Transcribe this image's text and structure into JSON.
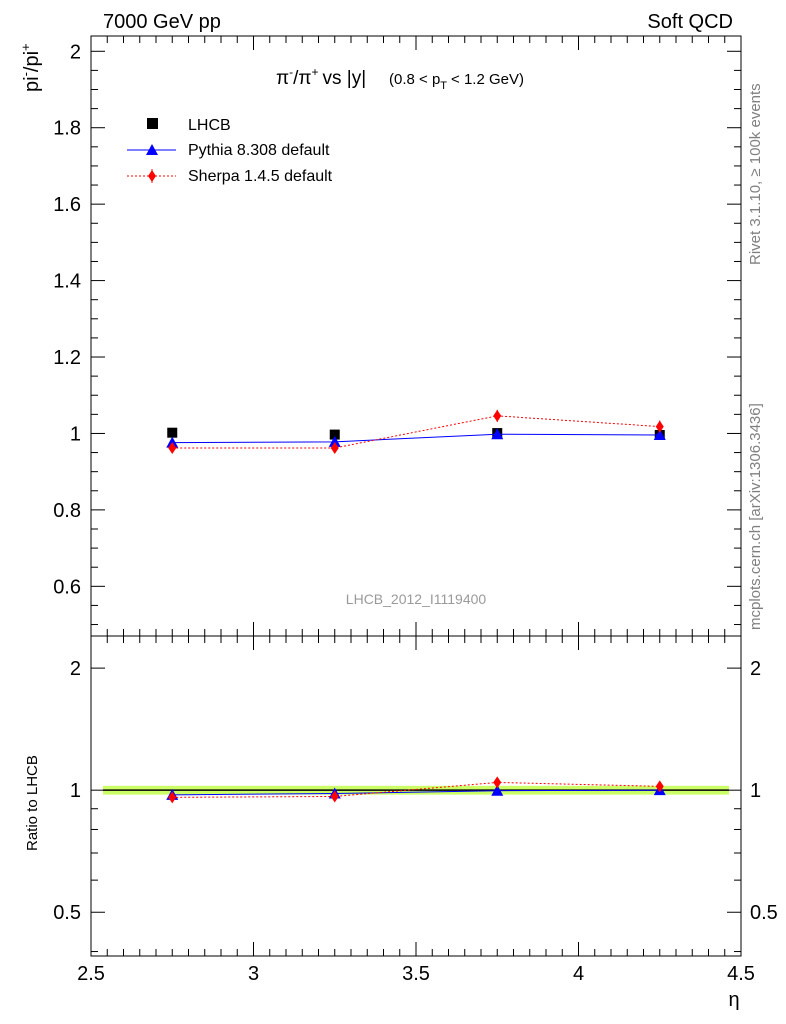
{
  "header": {
    "left": "7000 GeV pp",
    "right": "Soft QCD"
  },
  "side": {
    "rivet": "Rivet 3.1.10, ≥ 100k events",
    "mcplots": "mcplots.cern.ch [arXiv:1306.3436]"
  },
  "chart_data": [
    {
      "type": "scatter",
      "title": "π⁻/π⁺ vs |y| (0.8 < pT < 1.2 GeV)",
      "title_main": "vs |y|",
      "title_sub": "(0.8 < p",
      "title_sub_idx": "T",
      "title_sub_end": "< 1.2 GeV)",
      "ylabel": "pi⁻/pi⁺",
      "xlabel": "η",
      "watermark": "LHCB_2012_I1119400",
      "xlim": [
        2.5,
        4.5
      ],
      "ylim": [
        0.47,
        2.04
      ],
      "x": [
        2.75,
        3.25,
        3.75,
        4.25
      ],
      "xerr": 0.25,
      "series": [
        {
          "name": "LHCB",
          "color": "#000000",
          "marker": "square",
          "values": [
            1.002,
            0.997,
            1.001,
            0.996
          ],
          "err": [
            0.012,
            0.01,
            0.012,
            0.012
          ]
        },
        {
          "name": "Pythia 8.308 default",
          "color": "#0000ff",
          "marker": "triangle",
          "line": "solid",
          "values": [
            0.976,
            0.978,
            0.998,
            0.996
          ],
          "err": [
            0.006,
            0.006,
            0.006,
            0.006
          ]
        },
        {
          "name": "Sherpa 1.4.5 default",
          "color": "#ff0000",
          "marker": "diamond",
          "line": "dotted",
          "values": [
            0.962,
            0.962,
            1.046,
            1.018
          ],
          "err": [
            0.012,
            0.012,
            0.016,
            0.016
          ]
        }
      ],
      "yticks": [
        0.6,
        0.8,
        1,
        1.2,
        1.4,
        1.6,
        1.8,
        2
      ],
      "ytick_labels": [
        "0.6",
        "0.8",
        "1",
        "1.2",
        "1.4",
        "1.6",
        "1.8",
        "2"
      ],
      "legend": "top-left"
    },
    {
      "type": "scatter",
      "ylabel": "Ratio to LHCB",
      "scale": "log",
      "xlim": [
        2.5,
        4.5
      ],
      "ylim": [
        0.39,
        2.4
      ],
      "x": [
        2.75,
        3.25,
        3.75,
        4.25
      ],
      "band_color": "#ccff66",
      "band": [
        0.975,
        1.025
      ],
      "series": [
        {
          "name": "Pythia 8.308 default",
          "color": "#0000ff",
          "values": [
            0.974,
            0.981,
            0.997,
            1.0
          ]
        },
        {
          "name": "Sherpa 1.4.5 default",
          "color": "#ff0000",
          "values": [
            0.96,
            0.965,
            1.045,
            1.022
          ]
        }
      ],
      "yticks": [
        0.5,
        1,
        2
      ],
      "ytick_labels": [
        "0.5",
        "1",
        "2"
      ],
      "xticks": [
        2.5,
        3,
        3.5,
        4,
        4.5
      ],
      "xtick_labels": [
        "2.5",
        "3",
        "3.5",
        "4",
        "4.5"
      ]
    }
  ]
}
